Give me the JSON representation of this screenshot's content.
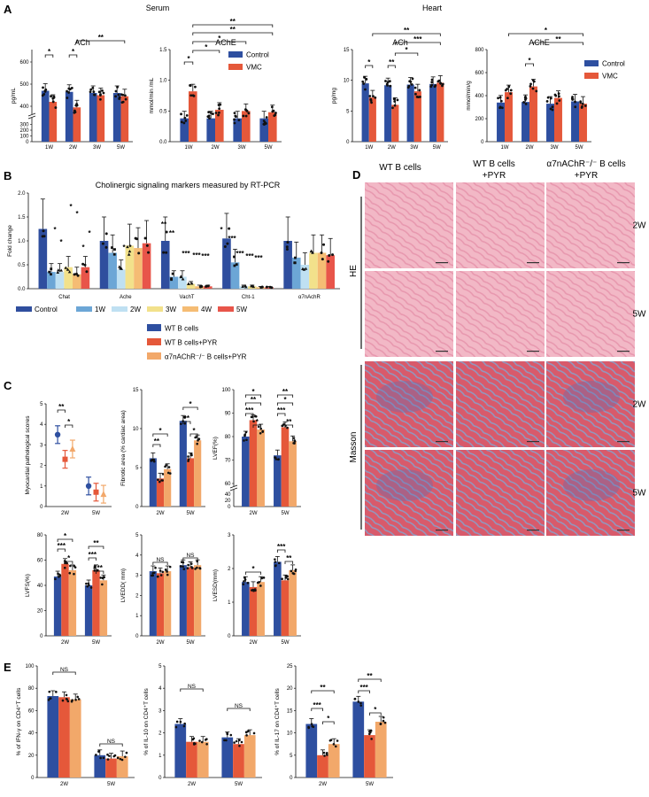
{
  "colors": {
    "control": "#2E4FA0",
    "vmc": "#E5583A",
    "wt": "#2E4FA0",
    "wtpyr": "#E5583A",
    "a7pyr": "#F2A86A",
    "bControl": "#2F4E9E",
    "b1W": "#6CA6D6",
    "b2W": "#BFE0F2",
    "b3W": "#F2E18B",
    "b4W": "#F5BC74",
    "b5W": "#E8554A"
  },
  "panelA": {
    "letter": "A",
    "serum": "Serum",
    "heart": "Heart",
    "legend": [
      "Control",
      "VMC"
    ],
    "charts": [
      {
        "title": "ACh",
        "ylabel": "pg/mL",
        "categories": [
          "1W",
          "2W",
          "3W",
          "5W"
        ],
        "ticks_top": [
          "400",
          "500",
          "600"
        ],
        "ticks_bottom": [
          "0",
          "100",
          "200",
          "300"
        ],
        "control": [
          470,
          465,
          460,
          460
        ],
        "vmc": [
          420,
          395,
          450,
          445
        ],
        "sig": [
          {
            "t": "*",
            "pair": [
              "1W-c",
              "1W-v"
            ]
          },
          {
            "t": "*",
            "pair": [
              "2W-c",
              "2W-v"
            ]
          },
          {
            "t": "**",
            "pair": [
              "2W-v",
              "5W-v"
            ]
          }
        ]
      },
      {
        "title": "AChE",
        "ylabel": "mmol/min /mL",
        "categories": [
          "1W",
          "2W",
          "3W",
          "5W"
        ],
        "ticks": [
          "0.0",
          "0.5",
          "1.0",
          "1.5"
        ],
        "ylim": [
          0,
          1.5
        ],
        "control": [
          0.38,
          0.38,
          0.38,
          0.38
        ],
        "vmc": [
          0.82,
          0.52,
          0.5,
          0.48
        ],
        "sig": [
          {
            "t": "*"
          },
          {
            "t": "*"
          },
          {
            "t": "*"
          },
          {
            "t": "**"
          },
          {
            "t": "**"
          }
        ]
      },
      {
        "title": "ACh",
        "ylabel": "pg/mg",
        "categories": [
          "1W",
          "2W",
          "3W",
          "5W"
        ],
        "ticks": [
          "0",
          "5",
          "10",
          "15"
        ],
        "ylim": [
          0,
          15
        ],
        "control": [
          9.5,
          9.2,
          9.3,
          9.4
        ],
        "vmc": [
          7.2,
          6.0,
          8.2,
          9.6
        ],
        "sig": [
          {
            "t": "*"
          },
          {
            "t": "**"
          },
          {
            "t": "*"
          },
          {
            "t": "***"
          },
          {
            "t": "**"
          }
        ]
      },
      {
        "title": "AChE",
        "ylabel": "mmol/min/g",
        "categories": [
          "1W",
          "2W",
          "3W",
          "5W"
        ],
        "ticks": [
          "0",
          "200",
          "400",
          "600",
          "800"
        ],
        "ylim": [
          0,
          800
        ],
        "control": [
          340,
          345,
          330,
          350
        ],
        "vmc": [
          430,
          480,
          380,
          330
        ],
        "sig": [
          {
            "t": "*"
          },
          {
            "t": "*"
          },
          {
            "t": "**"
          }
        ]
      }
    ]
  },
  "panelB": {
    "letter": "B",
    "title": "Cholinergic signaling markers measured by RT-PCR",
    "ylabel": "Fold change",
    "ticks": [
      "0.0",
      "0.5",
      "1.0",
      "1.5",
      "2.0"
    ],
    "ylim": [
      0,
      2.0
    ],
    "categories": [
      "Chat",
      "Ache",
      "VachT",
      "Cht-1",
      "α7nAchR"
    ],
    "series": [
      {
        "name": "Control",
        "values": [
          1.25,
          1.0,
          1.0,
          1.05,
          1.0
        ]
      },
      {
        "name": "1W",
        "values": [
          0.35,
          0.75,
          0.25,
          0.55,
          0.65
        ]
      },
      {
        "name": "2W",
        "values": [
          0.35,
          0.4,
          0.25,
          0.05,
          0.5
        ]
      },
      {
        "name": "3W",
        "values": [
          0.45,
          0.9,
          0.1,
          0.05,
          0.75
        ]
      },
      {
        "name": "4W",
        "values": [
          0.3,
          0.85,
          0.05,
          0.03,
          0.75
        ]
      },
      {
        "name": "5W",
        "values": [
          0.45,
          0.95,
          0.05,
          0.03,
          0.7
        ]
      }
    ],
    "sig": [
      [
        "*",
        "*",
        "*",
        "*",
        "*"
      ],
      [
        "*",
        "",
        ""
      ],
      [
        "**",
        "**",
        "***",
        "***",
        "***"
      ],
      [
        "*",
        "***",
        "***",
        "***",
        "***"
      ]
    ]
  },
  "legendC": {
    "items": [
      "WT B cells",
      "WT B cells+PYR",
      "α7nAChR⁻/⁻ B cells+PYR"
    ]
  },
  "panelC": {
    "letter": "C",
    "charts": [
      {
        "ylabel": "Myocardial pathological scores",
        "categories": [
          "2W",
          "5W"
        ],
        "ticks": [
          "0",
          "1",
          "2",
          "3",
          "4",
          "5"
        ],
        "ylim": [
          0,
          5
        ],
        "wt": [
          3.5,
          1.0
        ],
        "wtpyr": [
          2.3,
          0.7
        ],
        "a7pyr": [
          2.8,
          0.6
        ]
      },
      {
        "ylabel": "Fibrotic area (% cardiac area)",
        "categories": [
          "2W",
          "5W"
        ],
        "ticks": [
          "0",
          "5",
          "10",
          "15"
        ],
        "ylim": [
          0,
          15
        ],
        "wt": [
          6.2,
          11.0
        ],
        "wtpyr": [
          3.6,
          6.2
        ],
        "a7pyr": [
          4.8,
          8.5
        ]
      },
      {
        "ylabel": "LVEF(%)",
        "categories": [
          "2W",
          "5W"
        ],
        "ticks_top": [
          "60",
          "70",
          "80",
          "90",
          "100"
        ],
        "ticks_bottom": [
          "0",
          "20",
          "40"
        ],
        "wt": [
          80,
          72
        ],
        "wtpyr": [
          87,
          84
        ],
        "a7pyr": [
          83,
          78
        ]
      },
      {
        "ylabel": "LVFS(%)",
        "categories": [
          "2W",
          "5W"
        ],
        "ticks": [
          "0",
          "20",
          "40",
          "60",
          "80"
        ],
        "ylim": [
          0,
          80
        ],
        "wt": [
          47,
          40
        ],
        "wtpyr": [
          57,
          52
        ],
        "a7pyr": [
          52,
          44
        ]
      },
      {
        "ylabel": "LVEDD( mm)",
        "categories": [
          "2W",
          "5W"
        ],
        "ticks": [
          "0",
          "1",
          "2",
          "3",
          "4",
          "5"
        ],
        "ylim": [
          0,
          5
        ],
        "wt": [
          3.2,
          3.5
        ],
        "wtpyr": [
          3.1,
          3.4
        ],
        "a7pyr": [
          3.2,
          3.5
        ]
      },
      {
        "ylabel": "LVESD(mm)",
        "categories": [
          "2W",
          "5W"
        ],
        "ticks": [
          "0",
          "1",
          "2",
          "3"
        ],
        "ylim": [
          0,
          3
        ],
        "wt": [
          1.6,
          2.2
        ],
        "wtpyr": [
          1.45,
          1.65
        ],
        "a7pyr": [
          1.6,
          1.95
        ]
      }
    ]
  },
  "panelD": {
    "letter": "D",
    "cols": [
      "WT B cells",
      "WT B cells",
      "+PYR",
      "α7nAChR⁻/⁻ B cells",
      "+PYR"
    ],
    "rows": [
      "HE",
      "Masson"
    ],
    "weeks": [
      "2W",
      "5W",
      "2W",
      "5W"
    ]
  },
  "panelE": {
    "letter": "E",
    "charts": [
      {
        "ylabel": "% of IFN-γ on CD4⁺T cells",
        "categories": [
          "2W",
          "5W"
        ],
        "ticks": [
          "0",
          "20",
          "40",
          "60",
          "80",
          "100"
        ],
        "ylim": [
          0,
          100
        ],
        "wt": [
          73,
          20
        ],
        "wtpyr": [
          72,
          17
        ],
        "a7pyr": [
          70,
          19
        ],
        "sig": [
          "NS",
          "NS"
        ]
      },
      {
        "ylabel": "% of IL-10 on CD4⁺T cells",
        "categories": [
          "2W",
          "5W"
        ],
        "ticks": [
          "0",
          "1",
          "2",
          "3",
          "4",
          "5"
        ],
        "ylim": [
          0,
          5
        ],
        "wt": [
          2.4,
          1.8
        ],
        "wtpyr": [
          1.6,
          1.5
        ],
        "a7pyr": [
          1.6,
          1.9
        ],
        "sig": [
          "NS",
          "NS"
        ]
      },
      {
        "ylabel": "% of IL-17 on CD4⁺T cells",
        "categories": [
          "2W",
          "5W"
        ],
        "ticks": [
          "0",
          "5",
          "10",
          "15",
          "20",
          "25"
        ],
        "ylim": [
          0,
          25
        ],
        "wt": [
          12,
          17
        ],
        "wtpyr": [
          5,
          9.5
        ],
        "a7pyr": [
          7.5,
          12.5
        ],
        "sig": [
          "**",
          "***",
          "*",
          "**",
          "***",
          "*"
        ]
      }
    ]
  }
}
